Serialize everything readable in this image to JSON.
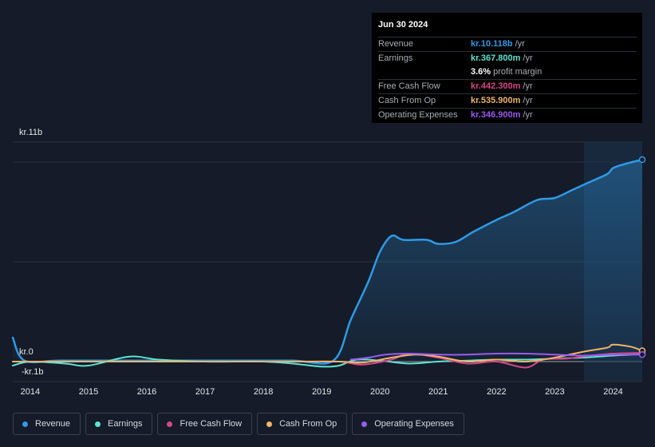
{
  "tooltip": {
    "date": "Jun 30 2024",
    "rows": [
      {
        "label": "Revenue",
        "value": "kr.10.118b",
        "unit": "/yr",
        "color": "#2f9ae6"
      },
      {
        "label": "Earnings",
        "value": "kr.367.800m",
        "unit": "/yr",
        "color": "#5fe3cf"
      },
      {
        "label": "",
        "value": "3.6%",
        "unit": "profit margin",
        "color": "#ffffff"
      },
      {
        "label": "Free Cash Flow",
        "value": "kr.442.300m",
        "unit": "/yr",
        "color": "#d6468a"
      },
      {
        "label": "Cash From Op",
        "value": "kr.535.900m",
        "unit": "/yr",
        "color": "#f0b46a"
      },
      {
        "label": "Operating Expenses",
        "value": "kr.346.900m",
        "unit": "/yr",
        "color": "#9a5cf0"
      }
    ]
  },
  "axis": {
    "y_top_label": "kr.11b",
    "y_zero_label": "kr.0",
    "y_neg_label": "-kr.1b"
  },
  "legend": [
    {
      "label": "Revenue",
      "color": "#2f9ae6"
    },
    {
      "label": "Earnings",
      "color": "#5fe3cf"
    },
    {
      "label": "Free Cash Flow",
      "color": "#d6468a"
    },
    {
      "label": "Cash From Op",
      "color": "#f0b46a"
    },
    {
      "label": "Operating Expenses",
      "color": "#9a5cf0"
    }
  ],
  "chart_data": {
    "type": "line",
    "title": "",
    "xlabel": "",
    "ylabel": "",
    "xlim": [
      2013.7,
      2024.5
    ],
    "ylim": [
      -1,
      11
    ],
    "x_ticks": [
      2014,
      2015,
      2016,
      2017,
      2018,
      2019,
      2020,
      2021,
      2022,
      2023,
      2024
    ],
    "y_ticks": [
      "kr.11b",
      "kr.0",
      "-kr.1b"
    ],
    "highlight_from": 2023.5,
    "series": [
      {
        "name": "Revenue",
        "color": "#2f9ae6",
        "unit": "kr.b",
        "x": [
          2013.7,
          2013.9,
          2014.5,
          2015.5,
          2016.5,
          2017.5,
          2018.5,
          2019.2,
          2019.5,
          2019.8,
          2020.0,
          2020.2,
          2020.4,
          2020.8,
          2021.0,
          2021.3,
          2021.6,
          2022.0,
          2022.3,
          2022.7,
          2023.0,
          2023.3,
          2023.6,
          2023.9,
          2024.0,
          2024.2,
          2024.5
        ],
        "values": [
          1.2,
          0.05,
          0.05,
          0.05,
          0.05,
          0.05,
          0.05,
          0.05,
          2.1,
          4.0,
          5.5,
          6.3,
          6.1,
          6.1,
          5.9,
          6.0,
          6.5,
          7.1,
          7.5,
          8.1,
          8.2,
          8.6,
          9.0,
          9.4,
          9.7,
          9.9,
          10.12
        ]
      },
      {
        "name": "Earnings",
        "color": "#5fe3cf",
        "unit": "kr.b",
        "x": [
          2013.7,
          2014.0,
          2014.6,
          2015.0,
          2015.7,
          2016.2,
          2017.0,
          2018.0,
          2018.5,
          2019.0,
          2019.3,
          2019.6,
          2020.0,
          2020.5,
          2021.0,
          2021.5,
          2022.0,
          2022.5,
          2023.0,
          2023.5,
          2024.0,
          2024.5
        ],
        "values": [
          -0.2,
          0.0,
          -0.1,
          -0.2,
          0.25,
          0.1,
          0.0,
          0.0,
          -0.1,
          -0.25,
          -0.2,
          0.1,
          0.05,
          -0.1,
          0.0,
          0.05,
          0.1,
          0.1,
          0.15,
          0.2,
          0.3,
          0.37
        ]
      },
      {
        "name": "Free Cash Flow",
        "color": "#d6468a",
        "unit": "kr.b",
        "x": [
          2013.7,
          2014.5,
          2015.5,
          2016.5,
          2017.5,
          2018.5,
          2019.3,
          2019.7,
          2020.2,
          2020.5,
          2021.0,
          2021.5,
          2022.0,
          2022.5,
          2022.8,
          2023.2,
          2023.6,
          2024.0,
          2024.5
        ],
        "values": [
          0.0,
          0.0,
          0.0,
          0.0,
          0.0,
          0.0,
          0.0,
          -0.15,
          0.1,
          0.4,
          0.2,
          -0.1,
          0.0,
          -0.3,
          0.1,
          0.15,
          0.3,
          0.4,
          0.44
        ]
      },
      {
        "name": "Cash From Op",
        "color": "#f0b46a",
        "unit": "kr.b",
        "x": [
          2013.7,
          2014.5,
          2015.5,
          2016.5,
          2017.5,
          2018.5,
          2019.3,
          2019.7,
          2020.2,
          2020.6,
          2021.0,
          2021.5,
          2022.0,
          2022.5,
          2023.0,
          2023.5,
          2023.9,
          2024.0,
          2024.3,
          2024.5
        ],
        "values": [
          0.0,
          0.0,
          0.0,
          0.0,
          0.0,
          0.0,
          0.0,
          -0.05,
          0.2,
          0.35,
          0.25,
          0.0,
          0.1,
          0.0,
          0.2,
          0.5,
          0.7,
          0.85,
          0.75,
          0.54
        ]
      },
      {
        "name": "Operating Expenses",
        "color": "#9a5cf0",
        "unit": "kr.b",
        "x": [
          2019.5,
          2019.8,
          2020.1,
          2020.5,
          2021.0,
          2021.5,
          2022.0,
          2022.5,
          2023.0,
          2023.5,
          2024.0,
          2024.5
        ],
        "values": [
          0.1,
          0.2,
          0.35,
          0.4,
          0.35,
          0.35,
          0.4,
          0.4,
          0.35,
          0.3,
          0.35,
          0.35
        ]
      }
    ]
  }
}
